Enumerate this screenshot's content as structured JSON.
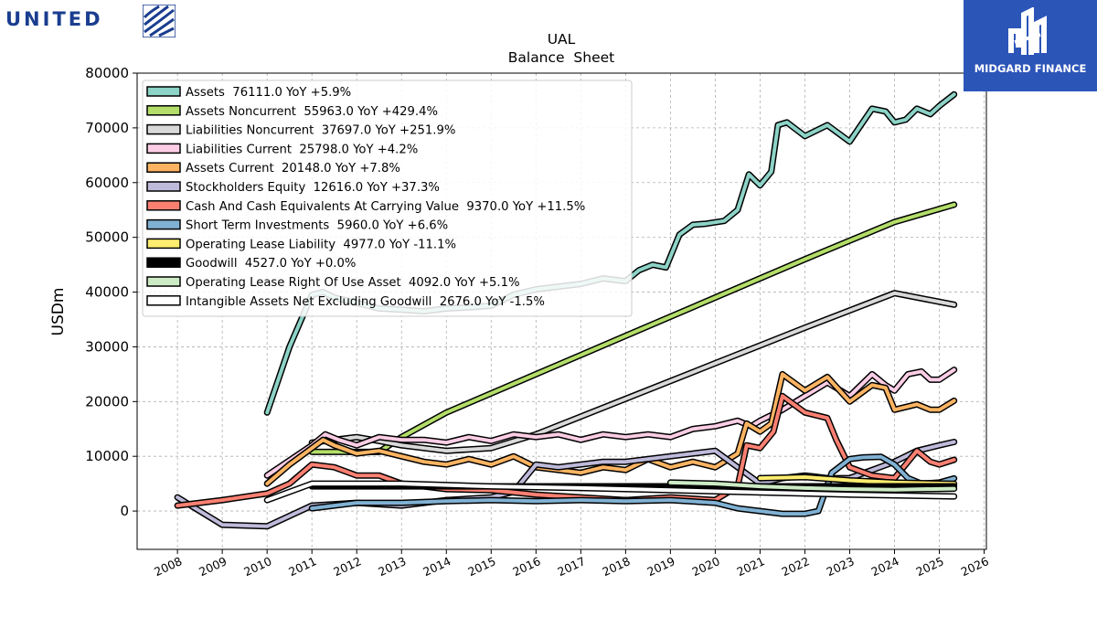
{
  "brand": {
    "company_logo_text": "UNITED",
    "badge_text": "MIDGARD FINANCE",
    "badge_color": "#2c55b8",
    "brand_color": "#1a3d8f"
  },
  "chart_data": {
    "type": "line",
    "title": "UAL",
    "subtitle": "Balance  Sheet",
    "ylabel": "USDm",
    "xlabel": "",
    "xlim": [
      2007.1,
      2026.05
    ],
    "ylim": [
      -7000,
      80000
    ],
    "xticks": [
      2008,
      2009,
      2010,
      2011,
      2012,
      2013,
      2014,
      2015,
      2016,
      2017,
      2018,
      2019,
      2020,
      2021,
      2022,
      2023,
      2024,
      2025,
      2026
    ],
    "yticks": [
      0,
      10000,
      20000,
      30000,
      40000,
      50000,
      60000,
      70000,
      80000
    ],
    "ytick_labels": [
      "0",
      "10000",
      "20000",
      "30000",
      "40000",
      "50000",
      "60000",
      "70000",
      "80000"
    ],
    "grid": true,
    "legend_position": "top-left",
    "series": [
      {
        "name": "Assets  76111.0 YoY +5.9%",
        "color": "#8dd3c7",
        "points": [
          [
            2010.0,
            18000
          ],
          [
            2010.5,
            30000
          ],
          [
            2011.0,
            39500
          ],
          [
            2011.25,
            40000
          ],
          [
            2011.5,
            39000
          ],
          [
            2012.0,
            38000
          ],
          [
            2012.5,
            37000
          ],
          [
            2013.0,
            36800
          ],
          [
            2013.5,
            36500
          ],
          [
            2014.0,
            37000
          ],
          [
            2014.5,
            37200
          ],
          [
            2015.0,
            37500
          ],
          [
            2015.5,
            39500
          ],
          [
            2016.0,
            40500
          ],
          [
            2016.5,
            41000
          ],
          [
            2017.0,
            41500
          ],
          [
            2017.5,
            42500
          ],
          [
            2018.0,
            42000
          ],
          [
            2018.3,
            44000
          ],
          [
            2018.6,
            45000
          ],
          [
            2018.9,
            44500
          ],
          [
            2019.2,
            50500
          ],
          [
            2019.5,
            52300
          ],
          [
            2019.8,
            52500
          ],
          [
            2020.2,
            53000
          ],
          [
            2020.5,
            55000
          ],
          [
            2020.75,
            61500
          ],
          [
            2021.0,
            59500
          ],
          [
            2021.25,
            62000
          ],
          [
            2021.4,
            70500
          ],
          [
            2021.6,
            71000
          ],
          [
            2022.0,
            68500
          ],
          [
            2022.5,
            70500
          ],
          [
            2023.0,
            67500
          ],
          [
            2023.25,
            70500
          ],
          [
            2023.5,
            73500
          ],
          [
            2023.8,
            73000
          ],
          [
            2024.0,
            71000
          ],
          [
            2024.25,
            71500
          ],
          [
            2024.5,
            73500
          ],
          [
            2024.8,
            72500
          ],
          [
            2025.0,
            74000
          ],
          [
            2025.33,
            76111
          ]
        ]
      },
      {
        "name": "Assets Noncurrent  55963.0 YoY +429.4%",
        "color": "#b3de69",
        "points": [
          [
            2011.0,
            10800
          ],
          [
            2012.5,
            10800
          ],
          [
            2013.0,
            13500
          ],
          [
            2014.0,
            18000
          ],
          [
            2016.0,
            25000
          ],
          [
            2018.0,
            32000
          ],
          [
            2020.0,
            39000
          ],
          [
            2022.0,
            46000
          ],
          [
            2024.0,
            52800
          ],
          [
            2025.33,
            55963
          ]
        ]
      },
      {
        "name": "Liabilities Noncurrent  37697.0 YoY +251.9%",
        "color": "#d9d9d9",
        "points": [
          [
            2011.0,
            12500
          ],
          [
            2012.0,
            13500
          ],
          [
            2012.5,
            12800
          ],
          [
            2013.0,
            12000
          ],
          [
            2014.0,
            11000
          ],
          [
            2015.0,
            11500
          ],
          [
            2016.0,
            14000
          ],
          [
            2018.0,
            20500
          ],
          [
            2020.0,
            27000
          ],
          [
            2022.0,
            33500
          ],
          [
            2024.0,
            39800
          ],
          [
            2025.33,
            37697
          ]
        ]
      },
      {
        "name": "Liabilities Current  25798.0 YoY +4.2%",
        "color": "#fccde5",
        "points": [
          [
            2010.0,
            6500
          ],
          [
            2011.0,
            12000
          ],
          [
            2011.3,
            14000
          ],
          [
            2011.6,
            13000
          ],
          [
            2012.0,
            12000
          ],
          [
            2012.5,
            13500
          ],
          [
            2013.0,
            13000
          ],
          [
            2013.5,
            13000
          ],
          [
            2014.0,
            12500
          ],
          [
            2014.5,
            13500
          ],
          [
            2015.0,
            12800
          ],
          [
            2015.5,
            14000
          ],
          [
            2016.0,
            13500
          ],
          [
            2016.5,
            14000
          ],
          [
            2017.0,
            13000
          ],
          [
            2017.5,
            14000
          ],
          [
            2018.0,
            13500
          ],
          [
            2018.5,
            14000
          ],
          [
            2019.0,
            13500
          ],
          [
            2019.5,
            15000
          ],
          [
            2020.0,
            15500
          ],
          [
            2020.5,
            16500
          ],
          [
            2020.8,
            15500
          ],
          [
            2021.0,
            16500
          ],
          [
            2021.5,
            18500
          ],
          [
            2022.0,
            21000
          ],
          [
            2022.5,
            23500
          ],
          [
            2023.0,
            21000
          ],
          [
            2023.5,
            25000
          ],
          [
            2023.8,
            23000
          ],
          [
            2024.0,
            22000
          ],
          [
            2024.3,
            25000
          ],
          [
            2024.6,
            25500
          ],
          [
            2024.8,
            24000
          ],
          [
            2025.0,
            24000
          ],
          [
            2025.33,
            25798
          ]
        ]
      },
      {
        "name": "Assets Current  20148.0 YoY +7.8%",
        "color": "#fdb462",
        "points": [
          [
            2010.0,
            5000
          ],
          [
            2010.5,
            8500
          ],
          [
            2011.0,
            11500
          ],
          [
            2011.25,
            13000
          ],
          [
            2011.5,
            12000
          ],
          [
            2012.0,
            10500
          ],
          [
            2012.5,
            11000
          ],
          [
            2013.0,
            10000
          ],
          [
            2013.5,
            9000
          ],
          [
            2014.0,
            8500
          ],
          [
            2014.5,
            9500
          ],
          [
            2015.0,
            8500
          ],
          [
            2015.5,
            10000
          ],
          [
            2016.0,
            8000
          ],
          [
            2016.5,
            7500
          ],
          [
            2017.0,
            7000
          ],
          [
            2017.5,
            8000
          ],
          [
            2018.0,
            7500
          ],
          [
            2018.5,
            9500
          ],
          [
            2019.0,
            8000
          ],
          [
            2019.5,
            9000
          ],
          [
            2020.0,
            8000
          ],
          [
            2020.5,
            10500
          ],
          [
            2020.7,
            16000
          ],
          [
            2021.0,
            14500
          ],
          [
            2021.25,
            16000
          ],
          [
            2021.5,
            25000
          ],
          [
            2022.0,
            22000
          ],
          [
            2022.5,
            24500
          ],
          [
            2023.0,
            20000
          ],
          [
            2023.5,
            23000
          ],
          [
            2023.8,
            22500
          ],
          [
            2024.0,
            18500
          ],
          [
            2024.5,
            19500
          ],
          [
            2024.8,
            18500
          ],
          [
            2025.0,
            18500
          ],
          [
            2025.33,
            20148
          ]
        ]
      },
      {
        "name": "Stockholders Equity  12616.0 YoY +37.3%",
        "color": "#bebada",
        "points": [
          [
            2008.0,
            2500
          ],
          [
            2009.0,
            -2500
          ],
          [
            2010.0,
            -2800
          ],
          [
            2011.0,
            1000
          ],
          [
            2012.0,
            1500
          ],
          [
            2013.0,
            1000
          ],
          [
            2014.0,
            2000
          ],
          [
            2015.0,
            2500
          ],
          [
            2015.5,
            3500
          ],
          [
            2016.0,
            8500
          ],
          [
            2016.5,
            8000
          ],
          [
            2017.0,
            8500
          ],
          [
            2017.5,
            9000
          ],
          [
            2018.0,
            9000
          ],
          [
            2018.5,
            9500
          ],
          [
            2019.0,
            10000
          ],
          [
            2019.5,
            10500
          ],
          [
            2020.0,
            11000
          ],
          [
            2020.5,
            8000
          ],
          [
            2021.0,
            5000
          ],
          [
            2021.5,
            6000
          ],
          [
            2022.0,
            6500
          ],
          [
            2022.5,
            6000
          ],
          [
            2023.0,
            6000
          ],
          [
            2023.5,
            7500
          ],
          [
            2024.0,
            9000
          ],
          [
            2024.5,
            11000
          ],
          [
            2025.0,
            12000
          ],
          [
            2025.33,
            12616
          ]
        ]
      },
      {
        "name": "Cash And Cash Equivalents At Carrying Value  9370.0 YoY +11.5%",
        "color": "#fb8072",
        "points": [
          [
            2008.0,
            1000
          ],
          [
            2009.0,
            2000
          ],
          [
            2010.0,
            3200
          ],
          [
            2010.5,
            5000
          ],
          [
            2011.0,
            8500
          ],
          [
            2011.5,
            8000
          ],
          [
            2012.0,
            6500
          ],
          [
            2012.5,
            6500
          ],
          [
            2013.0,
            5000
          ],
          [
            2014.0,
            4000
          ],
          [
            2015.0,
            3800
          ],
          [
            2016.0,
            3000
          ],
          [
            2017.0,
            2500
          ],
          [
            2018.0,
            2000
          ],
          [
            2019.0,
            2500
          ],
          [
            2020.0,
            2000
          ],
          [
            2020.5,
            4500
          ],
          [
            2020.7,
            12000
          ],
          [
            2021.0,
            11500
          ],
          [
            2021.3,
            14500
          ],
          [
            2021.5,
            21000
          ],
          [
            2022.0,
            18000
          ],
          [
            2022.5,
            17000
          ],
          [
            2022.7,
            13000
          ],
          [
            2023.0,
            8000
          ],
          [
            2023.5,
            6500
          ],
          [
            2024.0,
            6000
          ],
          [
            2024.3,
            9000
          ],
          [
            2024.5,
            11000
          ],
          [
            2024.8,
            9000
          ],
          [
            2025.0,
            8500
          ],
          [
            2025.33,
            9370
          ]
        ]
      },
      {
        "name": "Short Term Investments  5960.0 YoY +6.6%",
        "color": "#80b1d3",
        "points": [
          [
            2011.0,
            500
          ],
          [
            2012.0,
            1500
          ],
          [
            2013.0,
            1500
          ],
          [
            2014.0,
            1800
          ],
          [
            2015.0,
            2000
          ],
          [
            2016.0,
            1800
          ],
          [
            2017.0,
            2000
          ],
          [
            2018.0,
            1800
          ],
          [
            2019.0,
            2000
          ],
          [
            2020.0,
            1500
          ],
          [
            2020.5,
            500
          ],
          [
            2021.0,
            0
          ],
          [
            2021.5,
            -500
          ],
          [
            2022.0,
            -500
          ],
          [
            2022.3,
            0
          ],
          [
            2022.6,
            7000
          ],
          [
            2023.0,
            9500
          ],
          [
            2023.3,
            9800
          ],
          [
            2023.7,
            9900
          ],
          [
            2024.0,
            8500
          ],
          [
            2024.3,
            6000
          ],
          [
            2024.6,
            5000
          ],
          [
            2025.0,
            5200
          ],
          [
            2025.33,
            5960
          ]
        ]
      },
      {
        "name": "Operating Lease Liability  4977.0 YoY -11.1%",
        "color": "#ffed6f",
        "points": [
          [
            2021.0,
            6000
          ],
          [
            2022.0,
            6200
          ],
          [
            2023.0,
            5600
          ],
          [
            2024.0,
            5200
          ],
          [
            2025.33,
            4977
          ]
        ]
      },
      {
        "name": "Goodwill  4527.0 YoY +0.0%",
        "color": "#000000",
        "points": [
          [
            2011.0,
            4500
          ],
          [
            2025.33,
            4527
          ]
        ]
      },
      {
        "name": "Operating Lease Right Of Use Asset  4092.0 YoY +5.1%",
        "color": "#ccebc5",
        "points": [
          [
            2019.0,
            5200
          ],
          [
            2020.0,
            5000
          ],
          [
            2021.0,
            4500
          ],
          [
            2022.0,
            4200
          ],
          [
            2023.0,
            4000
          ],
          [
            2024.0,
            3900
          ],
          [
            2025.33,
            4092
          ]
        ]
      },
      {
        "name": "Intangible Assets Net Excluding Goodwill  2676.0 YoY -1.5%",
        "color": "#ffffff",
        "points": [
          [
            2010.0,
            2000
          ],
          [
            2011.0,
            5000
          ],
          [
            2013.0,
            5000
          ],
          [
            2015.0,
            4500
          ],
          [
            2017.0,
            4200
          ],
          [
            2019.0,
            3800
          ],
          [
            2021.0,
            3400
          ],
          [
            2023.0,
            3000
          ],
          [
            2025.33,
            2676
          ]
        ]
      }
    ]
  }
}
